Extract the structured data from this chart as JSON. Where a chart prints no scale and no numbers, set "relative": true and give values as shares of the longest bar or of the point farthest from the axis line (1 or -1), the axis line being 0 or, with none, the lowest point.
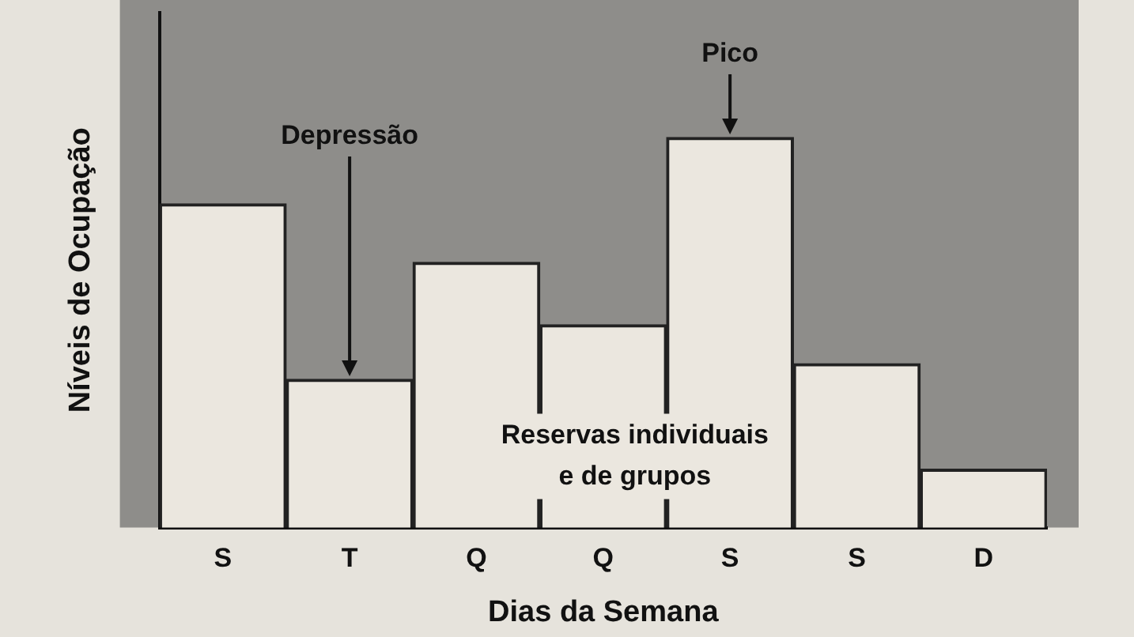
{
  "chart_data": {
    "type": "bar",
    "relative": true,
    "xlabel": "Dias da Semana",
    "ylabel": "Níveis de Ocupação",
    "categories": [
      "S",
      "T",
      "Q",
      "Q",
      "S",
      "S",
      "D"
    ],
    "values": [
      0.83,
      0.38,
      0.68,
      0.52,
      1,
      0.42,
      0.15
    ],
    "color": "#ebe7df",
    "annotations": [
      "Depressão",
      "Pico",
      "Reservas individuais\ne de grupos"
    ],
    "grid": false,
    "legend": false
  }
}
